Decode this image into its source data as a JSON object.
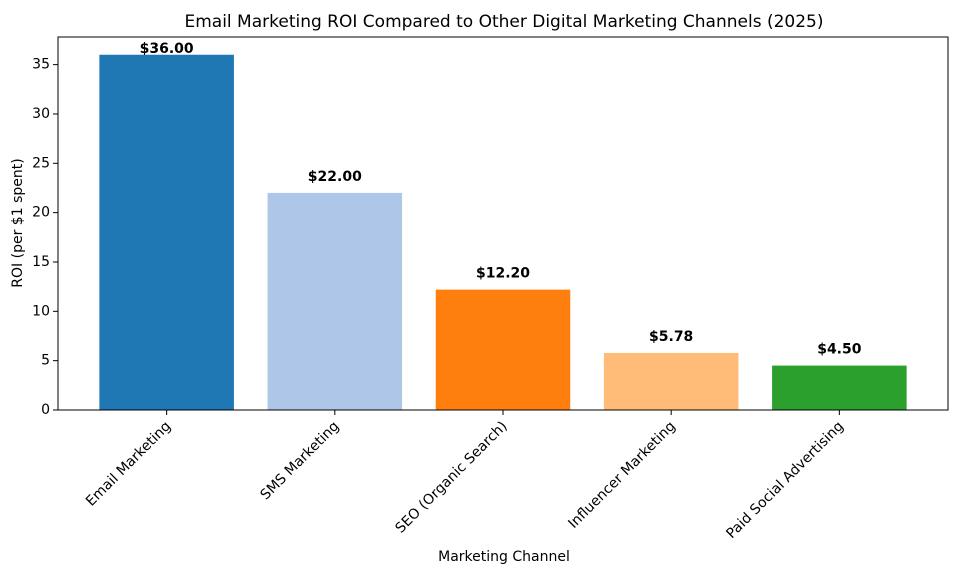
{
  "chart_data": {
    "type": "bar",
    "title": "Email Marketing ROI Compared to Other Digital Marketing Channels (2025)",
    "x_label": "Marketing Channel",
    "y_label": "ROI (per $1 spent)",
    "categories": [
      "Email Marketing",
      "SMS Marketing",
      "SEO (Organic Search)",
      "Influencer Marketing",
      "Paid Social Advertising"
    ],
    "values": [
      36.0,
      22.0,
      12.2,
      5.78,
      4.5
    ],
    "value_labels": [
      "$36.00",
      "$22.00",
      "$12.20",
      "$5.78",
      "$4.50"
    ],
    "colors": [
      "#1f77b4",
      "#aec7e8",
      "#ff7f0e",
      "#ffbb78",
      "#2ca02c"
    ],
    "ylim": [
      0,
      37.8
    ],
    "yticks": [
      0,
      5,
      10,
      15,
      20,
      25,
      30,
      35
    ],
    "grid": false
  }
}
